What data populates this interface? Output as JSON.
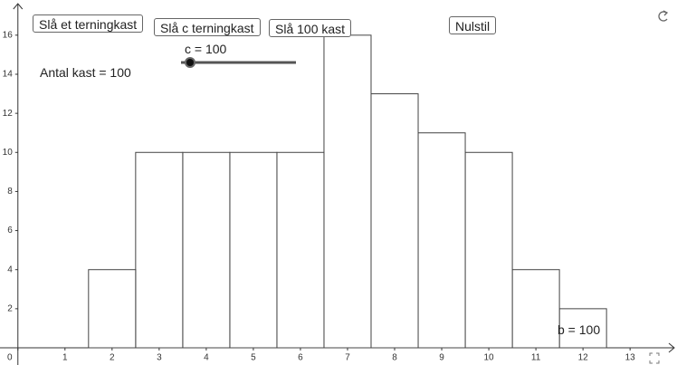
{
  "buttons": [
    "Slå et terningkast",
    "Slå c terningkast",
    "Slå 100 kast",
    "Nulstil"
  ],
  "slider_label": "c = 100",
  "count_label": "Antal kast = 100",
  "b_label": "b = 100",
  "chart_data": {
    "type": "histogram",
    "bins": [
      1.5,
      2.5,
      3.5,
      4.5,
      5.5,
      6.5,
      7.5,
      8.5,
      9.5,
      10.5,
      11.5,
      12.5
    ],
    "counts": [
      4,
      10,
      10,
      10,
      10,
      16,
      13,
      11,
      10,
      4,
      2
    ],
    "xlim": [
      -0.38,
      14.4
    ],
    "ylim": [
      -0.88,
      17.8
    ],
    "xticks": [
      0,
      1,
      2,
      3,
      4,
      5,
      6,
      7,
      8,
      9,
      10,
      11,
      12,
      13
    ],
    "yticks": [
      2,
      4,
      6,
      8,
      10,
      12,
      14,
      16
    ],
    "color": "#ffffff"
  }
}
